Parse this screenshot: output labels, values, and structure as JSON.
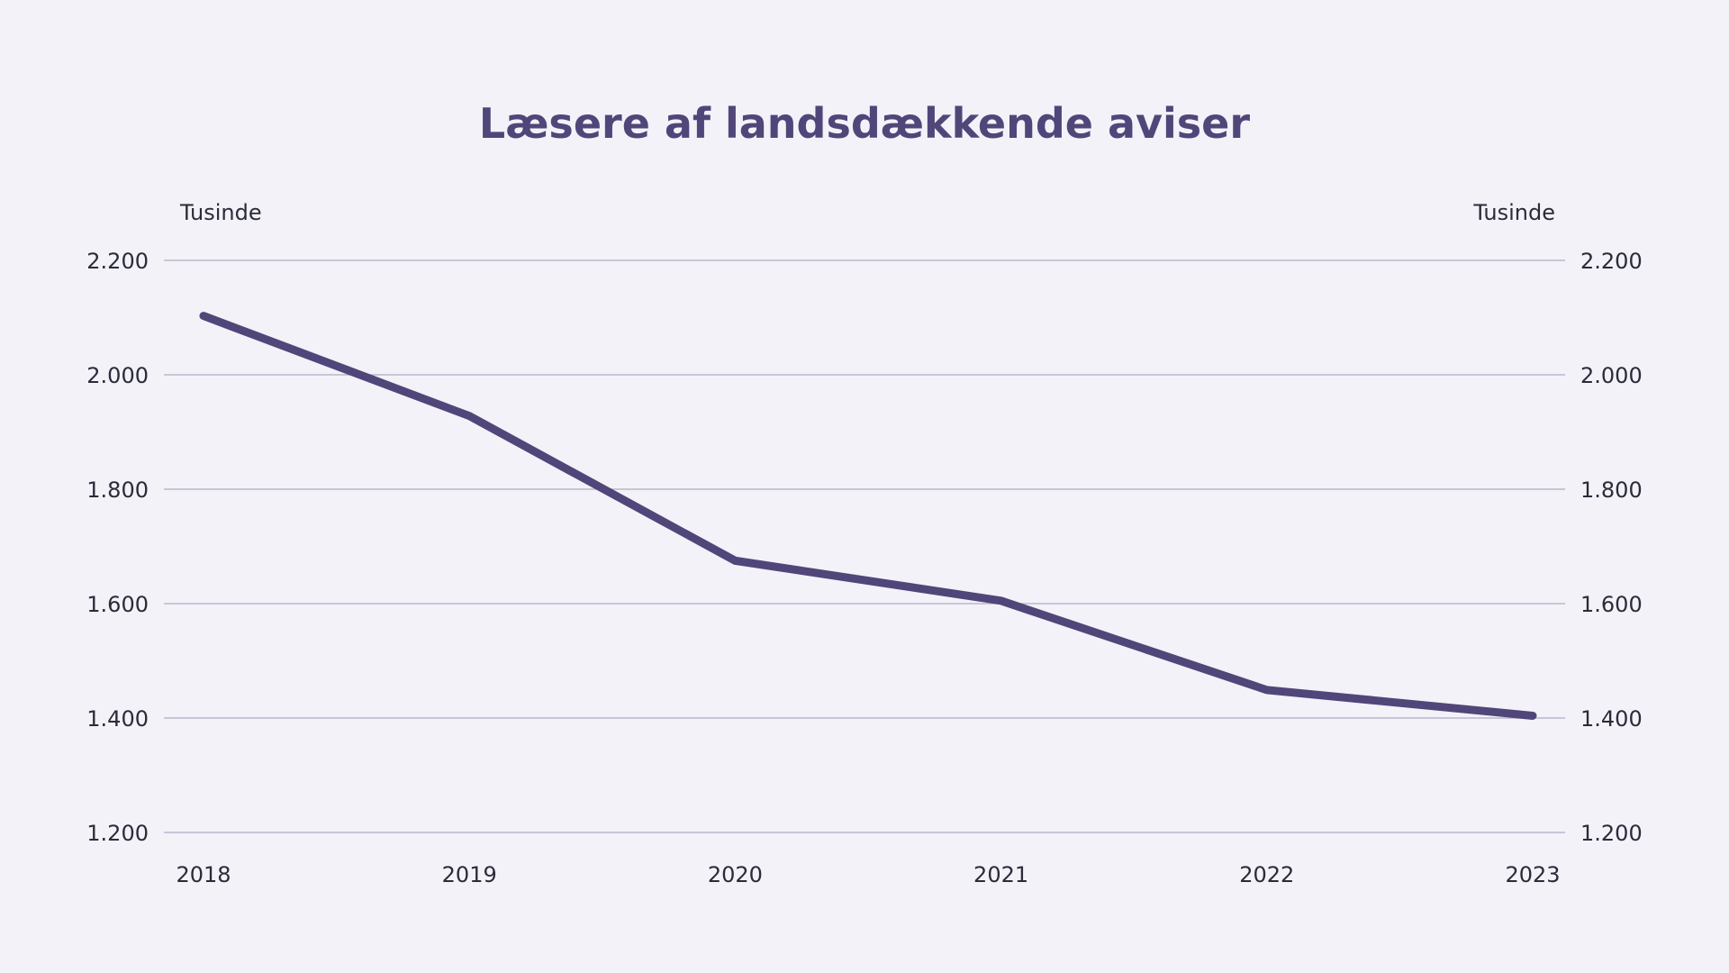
{
  "colors": {
    "background": "#f2f2f8",
    "series": "#514679",
    "grid": "#b9b8cc",
    "text": "#2b2b3a"
  },
  "chart_data": {
    "type": "line",
    "title": "Læsere af landsdækkende aviser",
    "ylabel_left": "Tusinde",
    "ylabel_right": "Tusinde",
    "xlabel": "",
    "categories": [
      "2018",
      "2019",
      "2020",
      "2021",
      "2022",
      "2023"
    ],
    "series": [
      {
        "values": [
          2103,
          1928,
          1675,
          1605,
          1449,
          1404
        ]
      }
    ],
    "ylim": [
      1200,
      2200
    ],
    "yticks": [
      2200,
      2000,
      1800,
      1600,
      1400,
      1200
    ],
    "ytick_labels": [
      "2.200",
      "2.000",
      "1.800",
      "1.600",
      "1.400",
      "1.200"
    ],
    "grid": "horizontal",
    "legend": "none",
    "secondary_axis": "right, mirrored"
  }
}
